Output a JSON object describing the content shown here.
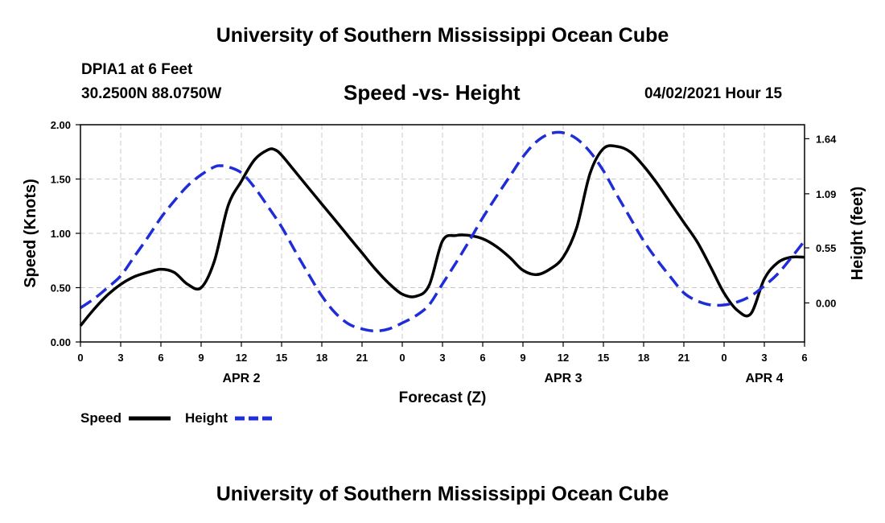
{
  "header": {
    "title": "University of Southern Mississippi Ocean Cube",
    "station": "DPIA1 at 6 Feet",
    "coords": "30.2500N  88.0750W",
    "subtitle": "Speed -vs- Height",
    "datetime": "04/02/2021 Hour 15"
  },
  "footer": {
    "title": "University of Southern Mississippi Ocean Cube"
  },
  "chart_data": {
    "type": "line",
    "title": "Speed -vs- Height",
    "xlabel": "Forecast (Z)",
    "ylabel": "Speed (Knots)",
    "y2label": "Height (feet)",
    "x_range_hours": [
      0,
      54
    ],
    "ylim": [
      0,
      2
    ],
    "y2lim": [
      -0.39,
      1.78
    ],
    "grid": true,
    "x_tick_labels": [
      "0",
      "3",
      "6",
      "9",
      "12",
      "15",
      "18",
      "21",
      "0",
      "3",
      "6",
      "9",
      "12",
      "15",
      "18",
      "21",
      "0",
      "3",
      "6"
    ],
    "y_tick_labels": [
      "0.00",
      "0.50",
      "1.00",
      "1.50",
      "2.00"
    ],
    "y2_ticks": [
      0.0,
      0.55,
      1.09,
      1.64
    ],
    "y2_tick_labels": [
      "0.00",
      "0.55",
      "1.09",
      "1.64"
    ],
    "day_labels": [
      {
        "label": "APR 2",
        "hour": 12
      },
      {
        "label": "APR 3",
        "hour": 36
      },
      {
        "label": "APR 4",
        "hour": 51
      }
    ],
    "series": [
      {
        "name": "Speed",
        "axis": "left",
        "color": "#000000",
        "style": "solid",
        "x": [
          0,
          1,
          2,
          3,
          4,
          5,
          6,
          7,
          8,
          9,
          10,
          11,
          12,
          13,
          14,
          14.5,
          15,
          16,
          17,
          18,
          19,
          20,
          21,
          22,
          23,
          24,
          25,
          26,
          27,
          28,
          29,
          30,
          31,
          32,
          33,
          34,
          35,
          36,
          37,
          38,
          39,
          40,
          41,
          42,
          43,
          44,
          45,
          46,
          47,
          48,
          49,
          50,
          51,
          52,
          53,
          54
        ],
        "values": [
          0.15,
          0.3,
          0.43,
          0.53,
          0.6,
          0.64,
          0.67,
          0.64,
          0.53,
          0.5,
          0.75,
          1.25,
          1.48,
          1.68,
          1.77,
          1.77,
          1.72,
          1.57,
          1.42,
          1.27,
          1.12,
          0.97,
          0.82,
          0.67,
          0.54,
          0.44,
          0.42,
          0.52,
          0.93,
          0.98,
          0.98,
          0.95,
          0.88,
          0.78,
          0.66,
          0.62,
          0.67,
          0.78,
          1.05,
          1.55,
          1.78,
          1.8,
          1.75,
          1.62,
          1.46,
          1.28,
          1.1,
          0.92,
          0.69,
          0.45,
          0.29,
          0.26,
          0.58,
          0.73,
          0.78,
          0.78
        ]
      },
      {
        "name": "Height",
        "axis": "right",
        "color": "#1f2dd8",
        "style": "dashed",
        "x": [
          0,
          1,
          2,
          3,
          4,
          5,
          6,
          7,
          8,
          9,
          10,
          10.5,
          11,
          12,
          13,
          14,
          15,
          16,
          17,
          18,
          19,
          20,
          21,
          22,
          23,
          24,
          25,
          26,
          27,
          28,
          29,
          30,
          31,
          32,
          33,
          34,
          35,
          36,
          37,
          38,
          39,
          40,
          41,
          42,
          43,
          44,
          45,
          46,
          47,
          48,
          49,
          50,
          51,
          52,
          53,
          54
        ],
        "values": [
          -0.05,
          0.04,
          0.15,
          0.27,
          0.46,
          0.65,
          0.85,
          1.02,
          1.17,
          1.28,
          1.36,
          1.37,
          1.36,
          1.3,
          1.15,
          0.96,
          0.76,
          0.52,
          0.29,
          0.07,
          -0.1,
          -0.21,
          -0.26,
          -0.28,
          -0.26,
          -0.2,
          -0.13,
          -0.02,
          0.19,
          0.4,
          0.62,
          0.85,
          1.06,
          1.26,
          1.46,
          1.61,
          1.69,
          1.7,
          1.64,
          1.51,
          1.32,
          1.08,
          0.85,
          0.62,
          0.43,
          0.26,
          0.1,
          0.02,
          -0.02,
          -0.02,
          0.01,
          0.07,
          0.17,
          0.29,
          0.45,
          0.62
        ]
      }
    ],
    "legend": [
      {
        "label": "Speed",
        "color": "#000000",
        "style": "solid"
      },
      {
        "label": "Height",
        "color": "#1f2dd8",
        "style": "dashed"
      }
    ],
    "legend_position": "bottom-left"
  }
}
